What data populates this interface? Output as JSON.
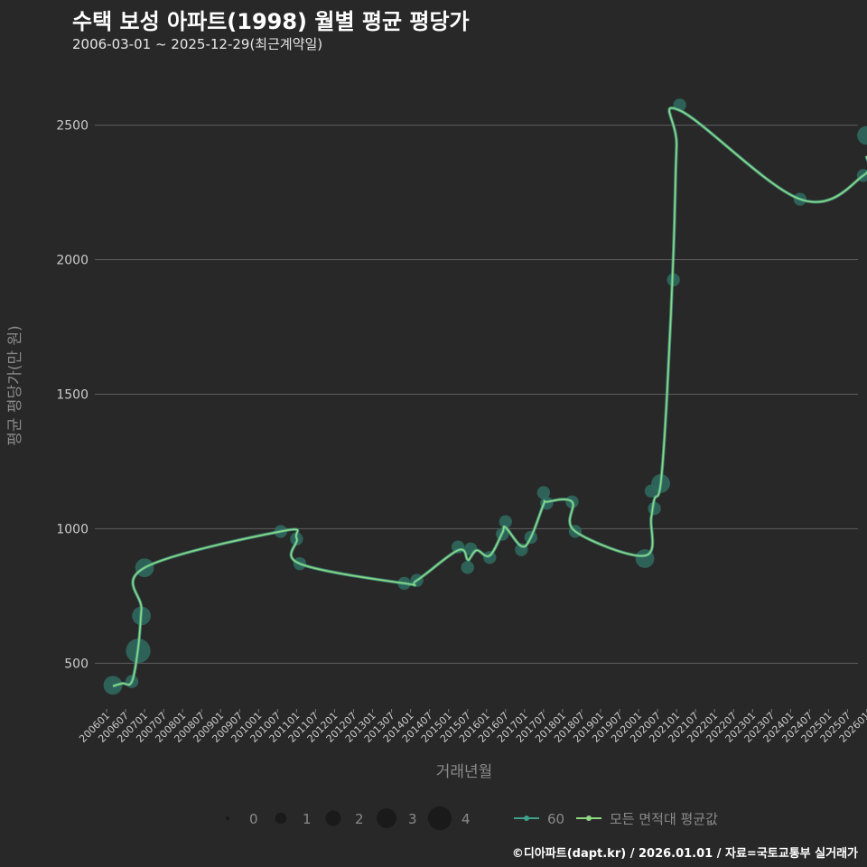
{
  "header": {
    "title": "수택 보성 아파트(1998) 월별 평균 평당가",
    "subtitle": "2006-03-01 ~ 2025-12-29(최근계약일)"
  },
  "caption": "©디아파트(dapt.kr) / 2026.01.01 / 자료=국토교통부 실거래가",
  "colors": {
    "background": "#282828",
    "grid": "#5e5e5e",
    "point": "#2f6b5f",
    "line60": "#3fa08c",
    "avgLine": "#8fd882",
    "axisText": "#cccccc",
    "labelText": "#8a8a8a"
  },
  "chart_data": {
    "type": "scatter",
    "xlabel": "거래년월",
    "ylabel": "평균 평당가(만 원)",
    "ylim": [
      330,
      2680
    ],
    "yticks": [
      500,
      1000,
      1500,
      2000,
      2500
    ],
    "xticks": [
      "200601",
      "200607",
      "200701",
      "200707",
      "200801",
      "200807",
      "200901",
      "200907",
      "201001",
      "201007",
      "201101",
      "201107",
      "201201",
      "201207",
      "201301",
      "201307",
      "201401",
      "201407",
      "201501",
      "201507",
      "201601",
      "201607",
      "201701",
      "201707",
      "201801",
      "201807",
      "201901",
      "201907",
      "202001",
      "202007",
      "202101",
      "202107",
      "202201",
      "202207",
      "202301",
      "202307",
      "202401",
      "202407",
      "202501",
      "202507",
      "202601"
    ],
    "xlim": [
      "200601",
      "202602"
    ],
    "size_legend": {
      "values": [
        "0",
        "1",
        "2",
        "3",
        "4"
      ]
    },
    "series": [
      {
        "name": "60",
        "points": [
          {
            "x": "200603",
            "y": 418,
            "n": 2
          },
          {
            "x": "200609",
            "y": 432,
            "n": 1
          },
          {
            "x": "200611",
            "y": 546,
            "n": 3
          },
          {
            "x": "200612",
            "y": 676,
            "n": 2
          },
          {
            "x": "200701",
            "y": 855,
            "n": 2
          },
          {
            "x": "201008",
            "y": 990,
            "n": 1
          },
          {
            "x": "201101",
            "y": 962,
            "n": 1
          },
          {
            "x": "201102",
            "y": 870,
            "n": 1
          },
          {
            "x": "201311",
            "y": 797,
            "n": 1
          },
          {
            "x": "201403",
            "y": 808,
            "n": 1
          },
          {
            "x": "201504",
            "y": 932,
            "n": 1
          },
          {
            "x": "201507",
            "y": 856,
            "n": 1
          },
          {
            "x": "201508",
            "y": 925,
            "n": 1
          },
          {
            "x": "201602",
            "y": 893,
            "n": 1
          },
          {
            "x": "201606",
            "y": 980,
            "n": 1
          },
          {
            "x": "201607",
            "y": 1026,
            "n": 1
          },
          {
            "x": "201612",
            "y": 922,
            "n": 1
          },
          {
            "x": "201703",
            "y": 968,
            "n": 1
          },
          {
            "x": "201707",
            "y": 1134,
            "n": 1
          },
          {
            "x": "201708",
            "y": 1095,
            "n": 1
          },
          {
            "x": "201804",
            "y": 1100,
            "n": 1
          },
          {
            "x": "201805",
            "y": 990,
            "n": 1
          },
          {
            "x": "202003",
            "y": 889,
            "n": 2
          },
          {
            "x": "202005",
            "y": 1140,
            "n": 1
          },
          {
            "x": "202006",
            "y": 1075,
            "n": 1
          },
          {
            "x": "202008",
            "y": 1168,
            "n": 2
          },
          {
            "x": "202012",
            "y": 1925,
            "n": 1
          },
          {
            "x": "202102",
            "y": 2575,
            "n": 1
          },
          {
            "x": "202404",
            "y": 2225,
            "n": 1
          },
          {
            "x": "202512",
            "y": 2313,
            "n": 1
          },
          {
            "x": "202601",
            "y": 2462,
            "n": 2
          }
        ]
      },
      {
        "name": "모든 면적대 평균값",
        "points": [
          {
            "x": "200603",
            "y": 415
          },
          {
            "x": "200606",
            "y": 425
          },
          {
            "x": "200609",
            "y": 432
          },
          {
            "x": "200611",
            "y": 560
          },
          {
            "x": "200612",
            "y": 700
          },
          {
            "x": "200701",
            "y": 855
          },
          {
            "x": "201008",
            "y": 990
          },
          {
            "x": "201101",
            "y": 965
          },
          {
            "x": "201102",
            "y": 870
          },
          {
            "x": "201311",
            "y": 797
          },
          {
            "x": "201403",
            "y": 808
          },
          {
            "x": "201504",
            "y": 920
          },
          {
            "x": "201507",
            "y": 885
          },
          {
            "x": "201508",
            "y": 895
          },
          {
            "x": "201510",
            "y": 920
          },
          {
            "x": "201602",
            "y": 900
          },
          {
            "x": "201606",
            "y": 985
          },
          {
            "x": "201607",
            "y": 1005
          },
          {
            "x": "201612",
            "y": 935
          },
          {
            "x": "201703",
            "y": 968
          },
          {
            "x": "201707",
            "y": 1090
          },
          {
            "x": "201708",
            "y": 1100
          },
          {
            "x": "201804",
            "y": 1100
          },
          {
            "x": "201805",
            "y": 990
          },
          {
            "x": "202003",
            "y": 900
          },
          {
            "x": "202005",
            "y": 1040
          },
          {
            "x": "202006",
            "y": 1110
          },
          {
            "x": "202008",
            "y": 1168
          },
          {
            "x": "202010",
            "y": 1500
          },
          {
            "x": "202012",
            "y": 2020
          },
          {
            "x": "202101",
            "y": 2420
          },
          {
            "x": "202102",
            "y": 2555
          },
          {
            "x": "202404",
            "y": 2225
          },
          {
            "x": "202512",
            "y": 2313
          },
          {
            "x": "202601",
            "y": 2385
          }
        ]
      }
    ]
  }
}
